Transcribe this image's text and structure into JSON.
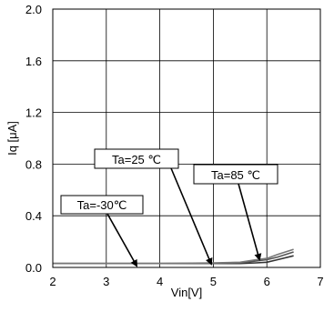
{
  "chart_data": {
    "type": "line",
    "xlabel": "Vin[V]",
    "ylabel": "Iq [μA]",
    "xlim": [
      2,
      7
    ],
    "ylim": [
      0,
      2.0
    ],
    "x_ticks": [
      2,
      3,
      4,
      5,
      6,
      7
    ],
    "y_ticks": [
      0.0,
      0.4,
      0.8,
      1.2,
      1.6,
      2.0
    ],
    "x_tick_labels": [
      "2",
      "3",
      "4",
      "5",
      "6",
      "7"
    ],
    "y_tick_labels": [
      "0.0",
      "0.4",
      "0.8",
      "1.2",
      "1.6",
      "2.0"
    ],
    "grid": true,
    "series": [
      {
        "name": "Ta=-30℃",
        "color": "#333333",
        "x": [
          2.0,
          3.0,
          4.0,
          5.0,
          5.5,
          5.8,
          6.0,
          6.2,
          6.5
        ],
        "y": [
          0.03,
          0.03,
          0.03,
          0.03,
          0.03,
          0.035,
          0.04,
          0.06,
          0.09
        ]
      },
      {
        "name": "Ta=25 ℃",
        "color": "#555555",
        "x": [
          2.0,
          3.0,
          4.0,
          5.0,
          5.5,
          5.8,
          6.0,
          6.2,
          6.5
        ],
        "y": [
          0.03,
          0.03,
          0.03,
          0.03,
          0.035,
          0.05,
          0.06,
          0.08,
          0.12
        ]
      },
      {
        "name": "Ta=85 ℃",
        "color": "#777777",
        "x": [
          2.0,
          3.0,
          4.0,
          5.0,
          5.5,
          5.8,
          6.0,
          6.2,
          6.5
        ],
        "y": [
          0.03,
          0.03,
          0.03,
          0.035,
          0.04,
          0.06,
          0.07,
          0.1,
          0.14
        ]
      }
    ],
    "annotations": [
      {
        "text": "Ta=-30℃",
        "target_x": 3.5,
        "target_y": 0.02
      },
      {
        "text": "Ta=25 ℃",
        "target_x": 4.85,
        "target_y": 0.03
      },
      {
        "text": "Ta=85 ℃",
        "target_x": 5.8,
        "target_y": 0.05
      }
    ]
  }
}
